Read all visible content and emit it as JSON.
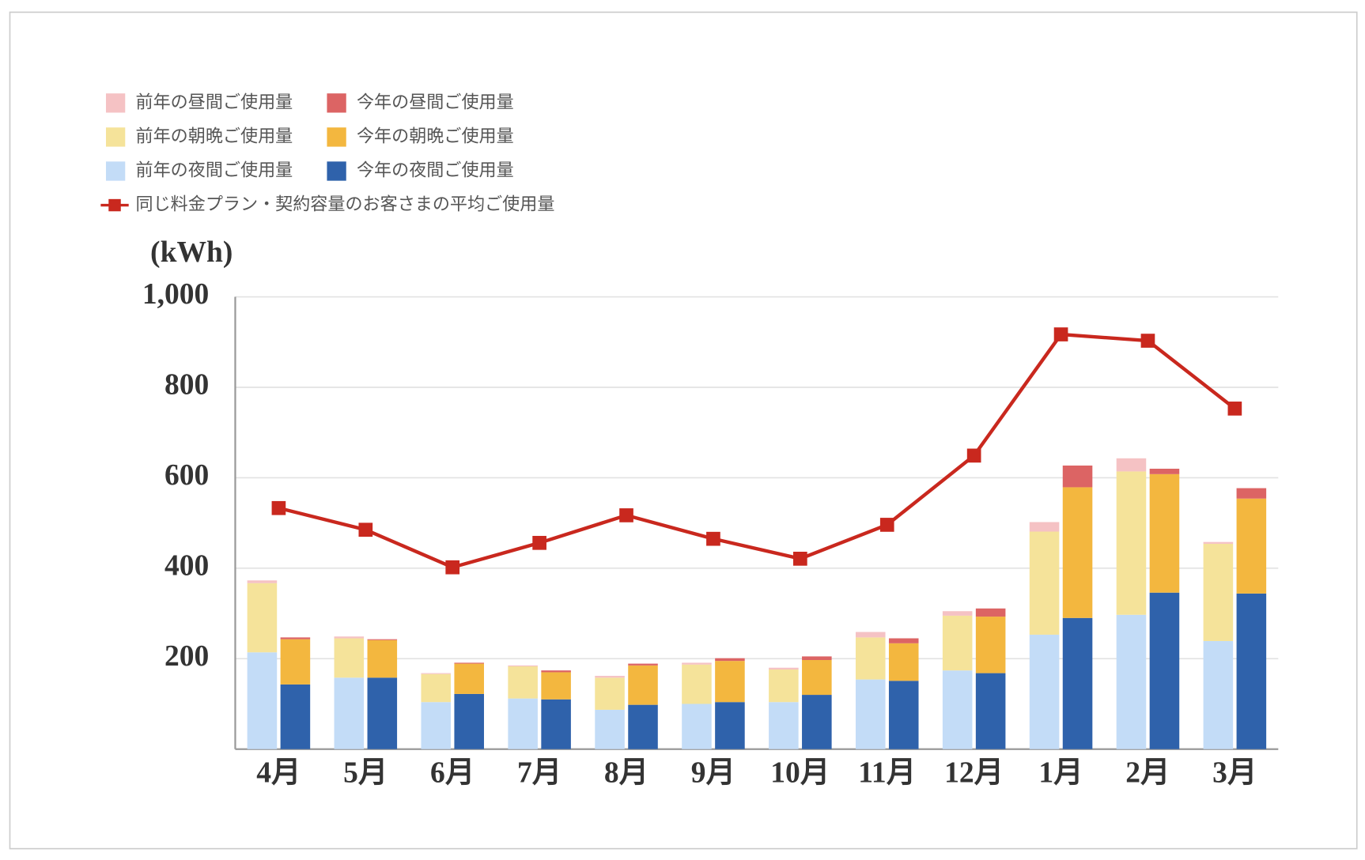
{
  "chart_data": {
    "type": "bar",
    "y_label": "(kWh)",
    "categories": [
      "4月",
      "5月",
      "6月",
      "7月",
      "8月",
      "9月",
      "10月",
      "11月",
      "12月",
      "1月",
      "2月",
      "3月"
    ],
    "ylim": [
      0,
      1000
    ],
    "yticks": [
      200,
      400,
      600,
      800,
      {
        "value": 1000,
        "label": "1,000"
      }
    ],
    "grid": true,
    "series": [
      {
        "name": "前年の昼間ご使用量",
        "color": "#f5c2c4",
        "values": [
          6,
          4,
          2,
          2,
          4,
          4,
          4,
          12,
          10,
          21,
          29,
          4
        ]
      },
      {
        "name": "今年の昼間ご使用量",
        "color": "#dc6464",
        "values": [
          4,
          2,
          2,
          4,
          4,
          6,
          8,
          11,
          18,
          48,
          12,
          23
        ]
      },
      {
        "name": "前年の朝晩ご使用量",
        "color": "#f5e39a",
        "values": [
          153,
          87,
          62,
          71,
          71,
          87,
          72,
          93,
          121,
          228,
          317,
          215
        ]
      },
      {
        "name": "今年の朝晩ご使用量",
        "color": "#f3b73f",
        "values": [
          100,
          83,
          67,
          60,
          87,
          91,
          77,
          83,
          125,
          289,
          262,
          210
        ]
      },
      {
        "name": "前年の夜間ご使用量",
        "color": "#c3dcf7",
        "values": [
          214,
          158,
          104,
          112,
          87,
          100,
          104,
          154,
          174,
          253,
          297,
          239
        ]
      },
      {
        "name": "今年の夜間ご使用量",
        "color": "#2f62ab",
        "values": [
          143,
          158,
          122,
          110,
          98,
          104,
          120,
          151,
          168,
          290,
          346,
          344
        ]
      },
      {
        "name": "同じ料金プラン・契約容量のお客さまの平均ご使用量",
        "color": "#c9281e",
        "type": "line",
        "values": [
          533,
          485,
          402,
          456,
          517,
          465,
          421,
          496,
          649,
          917,
          903,
          753
        ]
      }
    ]
  }
}
